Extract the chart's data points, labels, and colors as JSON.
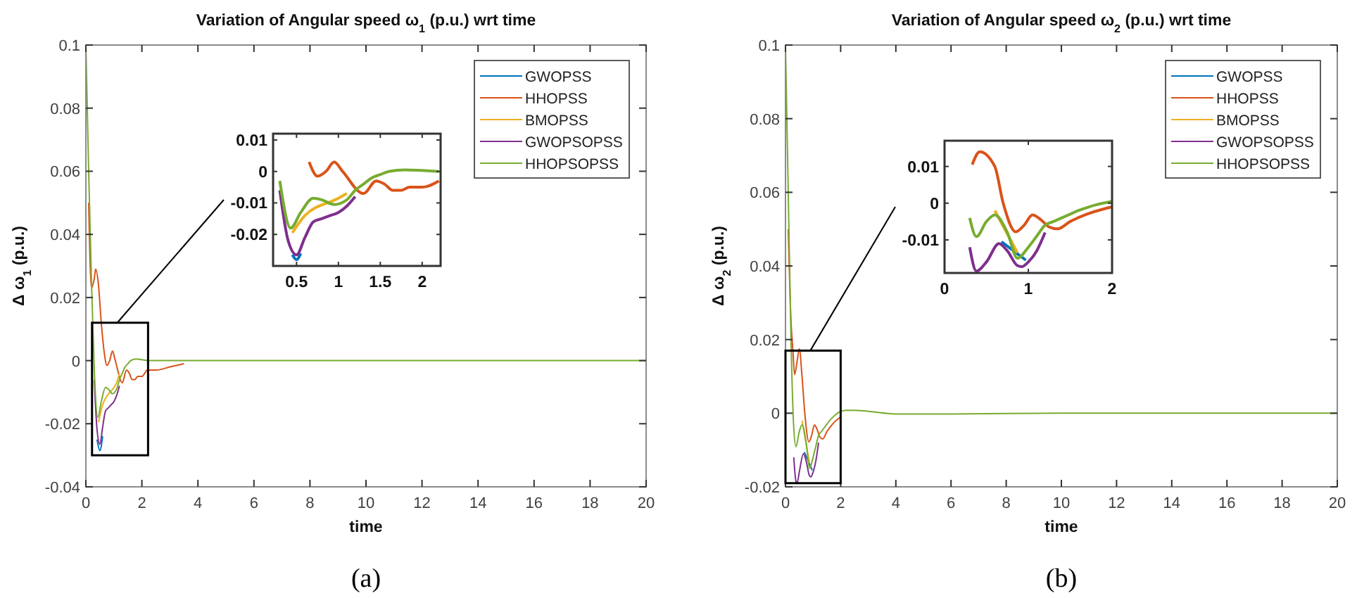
{
  "chart_data": [
    {
      "type": "line",
      "title": "Variation of Angular speed ω$_{1}$ (p.u.)  wrt time",
      "xlabel": "time",
      "ylabel": "Δ ω$_{1}$ (p.u.)",
      "annotations": [
        "(a)"
      ],
      "legend": "top right",
      "xlim": [
        0,
        20
      ],
      "xticks": [
        0,
        2,
        4,
        6,
        8,
        10,
        12,
        14,
        16,
        18,
        20
      ],
      "ylim": [
        -0.04,
        0.1
      ],
      "yticks": [
        -0.04,
        -0.02,
        0,
        0.02,
        0.04,
        0.06,
        0.08,
        0.1
      ],
      "series": [
        {
          "name": "GWOPSS",
          "color": "#0072bd",
          "x": [
            0.4,
            0.5,
            0.6
          ],
          "values": [
            -0.025,
            -0.0285,
            -0.024
          ]
        },
        {
          "name": "HHOPSS",
          "color": "#d95319",
          "x": [
            0.1,
            0.2,
            0.3,
            0.35,
            0.45,
            0.55,
            0.65,
            0.75,
            0.85,
            0.95,
            1.05,
            1.3,
            1.45,
            1.55,
            1.65,
            1.75,
            1.85,
            2.0,
            2.2,
            2.5,
            3,
            3.5
          ],
          "values": [
            0.05,
            0.023,
            0.026,
            0.029,
            0.024,
            0.012,
            0.003,
            -0.0015,
            0,
            0.003,
            0,
            -0.007,
            -0.003,
            -0.004,
            -0.006,
            -0.006,
            -0.005,
            -0.005,
            -0.003,
            -0.003,
            -0.002,
            -0.001
          ]
        },
        {
          "name": "BMOPSS",
          "color": "#edb120",
          "x": [
            0.45,
            0.6,
            1.0,
            1.1,
            1.2
          ],
          "values": [
            -0.0195,
            -0.014,
            -0.0085,
            -0.007,
            -0.004
          ]
        },
        {
          "name": "GWOPSOPSS",
          "color": "#7e2f8e",
          "x": [
            0.3,
            0.4,
            0.5,
            0.6,
            0.7,
            0.8,
            0.9,
            1.0,
            1.1,
            1.2
          ],
          "values": [
            -0.006,
            -0.022,
            -0.0265,
            -0.021,
            -0.016,
            -0.015,
            -0.014,
            -0.013,
            -0.011,
            -0.008
          ]
        },
        {
          "name": "HHOPSOPSS",
          "color": "#77ac30",
          "x": [
            0,
            0.1,
            0.2,
            0.3,
            0.43,
            0.55,
            0.7,
            0.8,
            0.95,
            1.1,
            1.2,
            1.3,
            1.4,
            1.5,
            1.6,
            1.8,
            2.0,
            2.2,
            2.5,
            3,
            4,
            6,
            10,
            20
          ],
          "values": [
            0.1,
            0.06,
            0.025,
            -0.003,
            -0.018,
            -0.013,
            -0.0085,
            -0.009,
            -0.0105,
            -0.009,
            -0.006,
            -0.004,
            -0.002,
            -0.001,
            0,
            0.0005,
            0.0003,
            0,
            0,
            0,
            0,
            0,
            0,
            0
          ]
        }
      ]
    },
    {
      "type": "line",
      "xlim": [
        0.22,
        2.22
      ],
      "xticks": [
        0.5,
        1,
        1.5,
        2
      ],
      "ylim": [
        -0.03,
        0.012
      ],
      "yticks": [
        -0.02,
        -0.01,
        0,
        0.01
      ],
      "series": [
        {
          "color": "#0072bd",
          "x": [
            0.45,
            0.5,
            0.55
          ],
          "values": [
            -0.0265,
            -0.028,
            -0.026
          ]
        },
        {
          "color": "#d95319",
          "x": [
            0.65,
            0.75,
            0.85,
            0.95,
            1.05,
            1.3,
            1.45,
            1.55,
            1.65,
            1.75,
            1.85,
            2.0,
            2.2
          ],
          "values": [
            0.003,
            -0.0015,
            0,
            0.003,
            0,
            -0.007,
            -0.003,
            -0.004,
            -0.006,
            -0.006,
            -0.005,
            -0.005,
            -0.003
          ]
        },
        {
          "color": "#edb120",
          "x": [
            0.45,
            0.6,
            1.0,
            1.1
          ],
          "values": [
            -0.0195,
            -0.014,
            -0.0085,
            -0.007
          ]
        },
        {
          "color": "#7e2f8e",
          "x": [
            0.3,
            0.4,
            0.5,
            0.6,
            0.7,
            0.8,
            0.9,
            1.0,
            1.1,
            1.2
          ],
          "values": [
            -0.006,
            -0.022,
            -0.0265,
            -0.021,
            -0.016,
            -0.015,
            -0.014,
            -0.013,
            -0.011,
            -0.008
          ]
        },
        {
          "color": "#77ac30",
          "x": [
            0.3,
            0.43,
            0.55,
            0.7,
            0.8,
            0.95,
            1.1,
            1.2,
            1.3,
            1.4,
            1.5,
            1.6,
            1.8,
            2.0,
            2.2
          ],
          "values": [
            -0.003,
            -0.018,
            -0.013,
            -0.0085,
            -0.009,
            -0.0105,
            -0.009,
            -0.006,
            -0.004,
            -0.002,
            -0.001,
            0,
            0.0005,
            0.0003,
            0
          ]
        }
      ]
    },
    {
      "type": "line",
      "title": "Variation of Angular speed ω$_{2}$ (p.u.)  wrt time",
      "xlabel": "time",
      "ylabel": "Δ ω$_{2}$ (p.u.)",
      "annotations": [
        "(b)"
      ],
      "legend": "top right",
      "xlim": [
        0,
        20
      ],
      "xticks": [
        0,
        2,
        4,
        6,
        8,
        10,
        12,
        14,
        16,
        18,
        20
      ],
      "ylim": [
        -0.02,
        0.1
      ],
      "yticks": [
        -0.02,
        0,
        0.02,
        0.04,
        0.06,
        0.08,
        0.1
      ],
      "series": [
        {
          "name": "GWOPSS",
          "color": "#0072bd",
          "x": [
            0.68,
            0.97
          ],
          "values": [
            -0.0105,
            -0.0155
          ]
        },
        {
          "name": "HHOPSS",
          "color": "#d95319",
          "x": [
            0.1,
            0.2,
            0.27,
            0.33,
            0.42,
            0.5,
            0.6,
            0.7,
            0.85,
            0.95,
            1.05,
            1.15,
            1.25,
            1.35,
            1.5,
            1.7,
            2.0
          ],
          "values": [
            0.05,
            0.025,
            0.017,
            0.0105,
            0.014,
            0.0175,
            0.01,
            0,
            -0.0078,
            -0.006,
            -0.0032,
            -0.0045,
            -0.0065,
            -0.007,
            -0.005,
            -0.003,
            -0.001
          ]
        },
        {
          "name": "BMOPSS",
          "color": "#edb120",
          "x": [
            0.6,
            0.87
          ],
          "values": [
            -0.002,
            -0.0135
          ]
        },
        {
          "name": "GWOPSOPSS",
          "color": "#7e2f8e",
          "x": [
            0.3,
            0.38,
            0.42,
            0.5,
            0.65,
            0.75,
            0.87,
            0.92,
            1.0,
            1.1,
            1.2
          ],
          "values": [
            -0.012,
            -0.0185,
            -0.019,
            -0.016,
            -0.011,
            -0.013,
            -0.017,
            -0.0173,
            -0.016,
            -0.013,
            -0.008
          ]
        },
        {
          "name": "HHOPSOPSS",
          "color": "#77ac30",
          "x": [
            0,
            0.1,
            0.2,
            0.3,
            0.38,
            0.5,
            0.6,
            0.75,
            0.87,
            1.0,
            1.1,
            1.2,
            1.3,
            1.4,
            1.5,
            1.6,
            1.7,
            1.8,
            2.0,
            2.2,
            2.5,
            3,
            4,
            6,
            10,
            20
          ],
          "values": [
            0.1,
            0.06,
            0.02,
            -0.004,
            -0.0091,
            -0.005,
            -0.0032,
            -0.008,
            -0.015,
            -0.012,
            -0.009,
            -0.006,
            -0.005,
            -0.004,
            -0.003,
            -0.002,
            -0.0012,
            -0.0005,
            0.0005,
            0.0008,
            0.0008,
            0.0005,
            -0.0002,
            -0.0002,
            0,
            0
          ]
        }
      ]
    },
    {
      "type": "line",
      "xlim": [
        0,
        2
      ],
      "xticks": [
        0,
        1,
        2
      ],
      "ylim": [
        -0.019,
        0.017
      ],
      "yticks": [
        -0.01,
        0,
        0.01
      ],
      "series": [
        {
          "color": "#0072bd",
          "x": [
            0.68,
            0.97
          ],
          "values": [
            -0.0105,
            -0.0155
          ]
        },
        {
          "color": "#d95319",
          "x": [
            0.33,
            0.42,
            0.5,
            0.6,
            0.7,
            0.85,
            0.95,
            1.05,
            1.15,
            1.25,
            1.35,
            1.5,
            1.7,
            2.0
          ],
          "values": [
            0.0105,
            0.014,
            null,
            0.01,
            0,
            -0.0078,
            -0.006,
            -0.0032,
            -0.0045,
            -0.0065,
            -0.007,
            -0.005,
            -0.003,
            -0.001
          ]
        },
        {
          "color": "#edb120",
          "x": [
            0.6,
            0.87
          ],
          "values": [
            -0.002,
            -0.0135
          ]
        },
        {
          "color": "#7e2f8e",
          "x": [
            0.3,
            0.38,
            0.42,
            0.5,
            0.65,
            0.75,
            0.87,
            0.92,
            1.0,
            1.1,
            1.2
          ],
          "values": [
            -0.012,
            -0.0185,
            null,
            -0.016,
            -0.011,
            -0.013,
            -0.017,
            -0.0173,
            -0.016,
            -0.013,
            -0.008
          ]
        },
        {
          "color": "#77ac30",
          "x": [
            0.3,
            0.38,
            0.5,
            0.6,
            0.75,
            0.87,
            1.0,
            1.1,
            1.2,
            1.3,
            1.4,
            1.5,
            1.6,
            1.7,
            1.8,
            2.0
          ],
          "values": [
            -0.004,
            -0.0091,
            -0.005,
            -0.0032,
            -0.008,
            -0.015,
            -0.012,
            -0.009,
            -0.006,
            -0.005,
            -0.004,
            -0.003,
            -0.002,
            -0.0012,
            -0.0005,
            0.0005
          ]
        }
      ]
    }
  ]
}
